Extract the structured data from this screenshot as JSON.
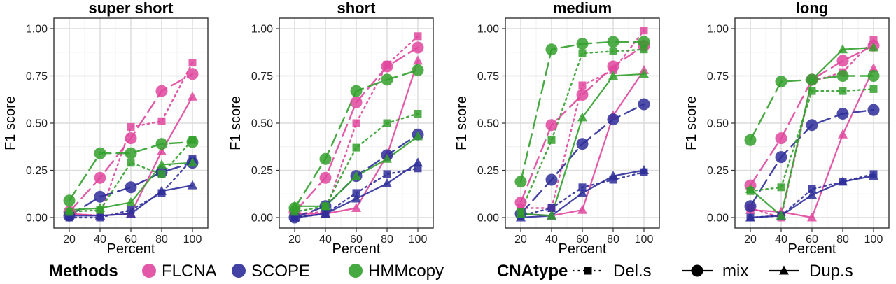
{
  "chart_data": {
    "type": "line",
    "x": [
      20,
      40,
      60,
      80,
      100
    ],
    "xlabel": "Percent",
    "ylabel": "F1 score",
    "ylim": [
      0,
      1
    ],
    "xticks": [
      "20",
      "40",
      "60",
      "80",
      "100"
    ],
    "yticks": [
      "0.00",
      "0.25",
      "0.50",
      "0.75",
      "1.00"
    ],
    "grid": true,
    "colors": {
      "FLCNA": "#e0479e",
      "SCOPE": "#2e2e9a",
      "HMMcopy": "#33a02c"
    },
    "legend": {
      "position": "bottom",
      "methods_title": "Methods",
      "methods": [
        "FLCNA",
        "SCOPE",
        "HMMcopy"
      ],
      "cnatype_title": "CNAtype",
      "cnatypes": [
        "Del.s",
        "mix",
        "Dup.s"
      ],
      "cnatype_styles": {
        "Del.s": "dotted-square",
        "mix": "solid-circle",
        "Dup.s": "solid-triangle"
      },
      "method_line_styles": {
        "FLCNA": "dashed",
        "SCOPE": "dashed",
        "HMMcopy": "dashed"
      }
    },
    "panels": [
      {
        "title": "super short",
        "series": [
          {
            "method": "FLCNA",
            "cnatype": "Del.s",
            "values": [
              0.02,
              0.01,
              0.48,
              0.51,
              0.82
            ]
          },
          {
            "method": "FLCNA",
            "cnatype": "mix",
            "values": [
              0.03,
              0.21,
              0.42,
              0.67,
              0.76
            ]
          },
          {
            "method": "FLCNA",
            "cnatype": "Dup.s",
            "values": [
              0.02,
              0.01,
              0.02,
              0.35,
              0.64
            ]
          },
          {
            "method": "SCOPE",
            "cnatype": "Del.s",
            "values": [
              0.0,
              0.0,
              0.04,
              0.13,
              0.31
            ]
          },
          {
            "method": "SCOPE",
            "cnatype": "mix",
            "values": [
              0.01,
              0.11,
              0.16,
              0.24,
              0.29
            ]
          },
          {
            "method": "SCOPE",
            "cnatype": "Dup.s",
            "values": [
              0.01,
              0.01,
              0.02,
              0.14,
              0.17
            ]
          },
          {
            "method": "HMMcopy",
            "cnatype": "Del.s",
            "values": [
              0.03,
              0.04,
              0.29,
              0.23,
              0.41
            ]
          },
          {
            "method": "HMMcopy",
            "cnatype": "mix",
            "values": [
              0.09,
              0.34,
              0.34,
              0.39,
              0.4
            ]
          },
          {
            "method": "HMMcopy",
            "cnatype": "Dup.s",
            "values": [
              0.04,
              0.05,
              0.08,
              0.28,
              0.29
            ]
          }
        ]
      },
      {
        "title": "short",
        "series": [
          {
            "method": "FLCNA",
            "cnatype": "Del.s",
            "values": [
              0.02,
              0.03,
              0.5,
              0.81,
              0.96
            ]
          },
          {
            "method": "FLCNA",
            "cnatype": "mix",
            "values": [
              0.03,
              0.21,
              0.61,
              0.8,
              0.9
            ]
          },
          {
            "method": "FLCNA",
            "cnatype": "Dup.s",
            "values": [
              0.02,
              0.02,
              0.05,
              0.33,
              0.83
            ]
          },
          {
            "method": "SCOPE",
            "cnatype": "Del.s",
            "values": [
              0.0,
              0.02,
              0.13,
              0.23,
              0.26
            ]
          },
          {
            "method": "SCOPE",
            "cnatype": "mix",
            "values": [
              0.0,
              0.06,
              0.22,
              0.33,
              0.44
            ]
          },
          {
            "method": "SCOPE",
            "cnatype": "Dup.s",
            "values": [
              0.0,
              0.02,
              0.1,
              0.18,
              0.29
            ]
          },
          {
            "method": "HMMcopy",
            "cnatype": "Del.s",
            "values": [
              0.03,
              0.06,
              0.37,
              0.5,
              0.55
            ]
          },
          {
            "method": "HMMcopy",
            "cnatype": "mix",
            "values": [
              0.05,
              0.31,
              0.67,
              0.73,
              0.78
            ]
          },
          {
            "method": "HMMcopy",
            "cnatype": "Dup.s",
            "values": [
              0.06,
              0.06,
              0.22,
              0.31,
              0.43
            ]
          }
        ]
      },
      {
        "title": "medium",
        "series": [
          {
            "method": "FLCNA",
            "cnatype": "Del.s",
            "values": [
              0.05,
              0.05,
              0.7,
              0.78,
              0.99
            ]
          },
          {
            "method": "FLCNA",
            "cnatype": "mix",
            "values": [
              0.08,
              0.49,
              0.65,
              0.8,
              0.91
            ]
          },
          {
            "method": "FLCNA",
            "cnatype": "Dup.s",
            "values": [
              0.02,
              0.01,
              0.04,
              0.54,
              0.78
            ]
          },
          {
            "method": "SCOPE",
            "cnatype": "Del.s",
            "values": [
              0.01,
              0.05,
              0.16,
              0.2,
              0.24
            ]
          },
          {
            "method": "SCOPE",
            "cnatype": "mix",
            "values": [
              0.02,
              0.2,
              0.39,
              0.52,
              0.6
            ]
          },
          {
            "method": "SCOPE",
            "cnatype": "Dup.s",
            "values": [
              0.0,
              0.01,
              0.13,
              0.22,
              0.25
            ]
          },
          {
            "method": "HMMcopy",
            "cnatype": "Del.s",
            "values": [
              0.03,
              0.41,
              0.87,
              0.88,
              0.89
            ]
          },
          {
            "method": "HMMcopy",
            "cnatype": "mix",
            "values": [
              0.19,
              0.89,
              0.92,
              0.93,
              0.93
            ]
          },
          {
            "method": "HMMcopy",
            "cnatype": "Dup.s",
            "values": [
              0.02,
              0.01,
              0.53,
              0.75,
              0.76
            ]
          }
        ]
      },
      {
        "title": "long",
        "series": [
          {
            "method": "FLCNA",
            "cnatype": "Del.s",
            "values": [
              0.05,
              0.0,
              0.72,
              0.77,
              0.94
            ]
          },
          {
            "method": "FLCNA",
            "cnatype": "mix",
            "values": [
              0.17,
              0.42,
              0.73,
              0.83,
              0.91
            ]
          },
          {
            "method": "FLCNA",
            "cnatype": "Dup.s",
            "values": [
              0.04,
              0.03,
              0.0,
              0.44,
              0.79
            ]
          },
          {
            "method": "SCOPE",
            "cnatype": "Del.s",
            "values": [
              0.0,
              0.01,
              0.15,
              0.19,
              0.23
            ]
          },
          {
            "method": "SCOPE",
            "cnatype": "mix",
            "values": [
              0.06,
              0.32,
              0.49,
              0.55,
              0.57
            ]
          },
          {
            "method": "SCOPE",
            "cnatype": "Dup.s",
            "values": [
              0.0,
              0.01,
              0.12,
              0.19,
              0.22
            ]
          },
          {
            "method": "HMMcopy",
            "cnatype": "Del.s",
            "values": [
              0.14,
              0.16,
              0.67,
              0.67,
              0.68
            ]
          },
          {
            "method": "HMMcopy",
            "cnatype": "mix",
            "values": [
              0.41,
              0.72,
              0.73,
              0.75,
              0.75
            ]
          },
          {
            "method": "HMMcopy",
            "cnatype": "Dup.s",
            "values": [
              0.15,
              0.01,
              0.73,
              0.89,
              0.9
            ]
          }
        ]
      }
    ]
  }
}
